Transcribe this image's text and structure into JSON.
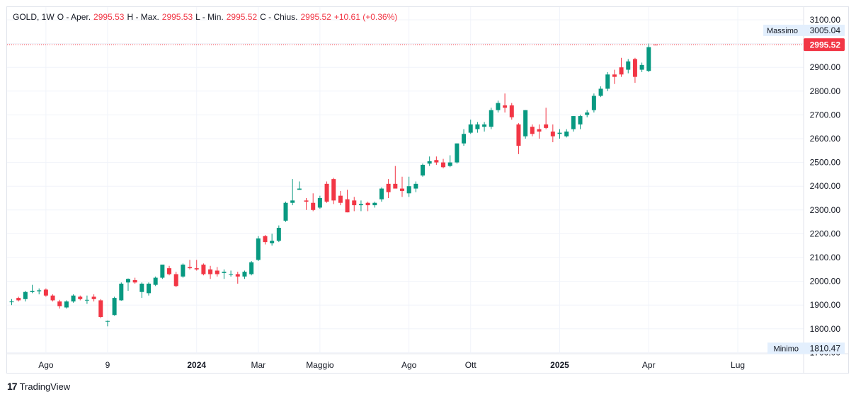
{
  "legend": {
    "symbol": "GOLD, 1W",
    "open_key": "O - Aper.",
    "open_val": "2995.53",
    "high_key": "H - Max.",
    "high_val": "2995.53",
    "low_key": "L - Min.",
    "low_val": "2995.52",
    "close_key": "C - Chius.",
    "close_val": "2995.52",
    "change": "+10.61 (+0.36%)"
  },
  "watermark": {
    "logo": "17",
    "text": "TradingView"
  },
  "colors": {
    "up": "#089981",
    "down": "#f23645",
    "grid": "#f0f3fa",
    "axis_text": "#131722",
    "max_label_bg": "#e3effd"
  },
  "chart_data": {
    "type": "candlestick",
    "ylim": [
      1680,
      3130
    ],
    "y_ticks": [
      "3100.00",
      "3000.00",
      "2900.00",
      "2800.00",
      "2700.00",
      "2600.00",
      "2500.00",
      "2400.00",
      "2300.00",
      "2200.00",
      "2100.00",
      "2000.00",
      "1900.00",
      "1800.00",
      "1700.00"
    ],
    "y_tick_values": [
      3100,
      3000,
      2900,
      2800,
      2700,
      2600,
      2500,
      2400,
      2300,
      2200,
      2100,
      2000,
      1900,
      1800,
      1700
    ],
    "x_labels": [
      {
        "label": "Ago",
        "index": 5
      },
      {
        "label": "9",
        "index": 14
      },
      {
        "label": "2024",
        "index": 27
      },
      {
        "label": "Mar",
        "index": 36
      },
      {
        "label": "Maggio",
        "index": 45
      },
      {
        "label": "Ago",
        "index": 58
      },
      {
        "label": "Ott",
        "index": 67
      },
      {
        "label": "2025",
        "index": 80
      },
      {
        "label": "Apr",
        "index": 93
      },
      {
        "label": "Lug",
        "index": 106
      }
    ],
    "max_label": {
      "text": "Massimo",
      "value": "3005.04",
      "price": 3005.04
    },
    "min_label": {
      "text": "Minimo",
      "value": "1810.47",
      "price": 1810.47
    },
    "last_price": {
      "value": "2995.52",
      "price": 2995.52
    },
    "candles": [
      {
        "o": 1912,
        "h": 1925,
        "l": 1900,
        "c": 1915
      },
      {
        "o": 1930,
        "h": 1935,
        "l": 1915,
        "c": 1920
      },
      {
        "o": 1925,
        "h": 1960,
        "l": 1915,
        "c": 1955
      },
      {
        "o": 1955,
        "h": 1985,
        "l": 1950,
        "c": 1960
      },
      {
        "o": 1958,
        "h": 1970,
        "l": 1945,
        "c": 1962
      },
      {
        "o": 1965,
        "h": 1970,
        "l": 1935,
        "c": 1940
      },
      {
        "o": 1940,
        "h": 1945,
        "l": 1915,
        "c": 1920
      },
      {
        "o": 1915,
        "h": 1922,
        "l": 1885,
        "c": 1895
      },
      {
        "o": 1890,
        "h": 1920,
        "l": 1885,
        "c": 1915
      },
      {
        "o": 1915,
        "h": 1945,
        "l": 1910,
        "c": 1940
      },
      {
        "o": 1935,
        "h": 1940,
        "l": 1920,
        "c": 1925
      },
      {
        "o": 1920,
        "h": 1940,
        "l": 1905,
        "c": 1922
      },
      {
        "o": 1935,
        "h": 1945,
        "l": 1915,
        "c": 1925
      },
      {
        "o": 1920,
        "h": 1925,
        "l": 1845,
        "c": 1850
      },
      {
        "o": 1830,
        "h": 1835,
        "l": 1810.47,
        "c": 1833
      },
      {
        "o": 1858,
        "h": 1935,
        "l": 1855,
        "c": 1930
      },
      {
        "o": 1920,
        "h": 1995,
        "l": 1918,
        "c": 1990
      },
      {
        "o": 1995,
        "h": 2012,
        "l": 1960,
        "c": 2010
      },
      {
        "o": 2005,
        "h": 2015,
        "l": 1990,
        "c": 1995
      },
      {
        "o": 1955,
        "h": 1995,
        "l": 1930,
        "c": 1990
      },
      {
        "o": 1950,
        "h": 1995,
        "l": 1940,
        "c": 1990
      },
      {
        "o": 1985,
        "h": 2020,
        "l": 1980,
        "c": 2015
      },
      {
        "o": 2015,
        "h": 2065,
        "l": 2010,
        "c": 2070
      },
      {
        "o": 2055,
        "h": 2065,
        "l": 2025,
        "c": 2030
      },
      {
        "o": 2030,
        "h": 2040,
        "l": 1975,
        "c": 1980
      },
      {
        "o": 2020,
        "h": 2075,
        "l": 2015,
        "c": 2070
      },
      {
        "o": 2060,
        "h": 2090,
        "l": 2050,
        "c": 2055
      },
      {
        "o": 2055,
        "h": 2090,
        "l": 2045,
        "c": 2050
      },
      {
        "o": 2070,
        "h": 2075,
        "l": 2025,
        "c": 2030
      },
      {
        "o": 2050,
        "h": 2065,
        "l": 2010,
        "c": 2030
      },
      {
        "o": 2045,
        "h": 2060,
        "l": 2020,
        "c": 2030
      },
      {
        "o": 2035,
        "h": 2050,
        "l": 2010,
        "c": 2040
      },
      {
        "o": 2030,
        "h": 2045,
        "l": 2020,
        "c": 2030
      },
      {
        "o": 2030,
        "h": 2040,
        "l": 1990,
        "c": 2020
      },
      {
        "o": 2020,
        "h": 2045,
        "l": 2010,
        "c": 2040
      },
      {
        "o": 2030,
        "h": 2085,
        "l": 2025,
        "c": 2080
      },
      {
        "o": 2090,
        "h": 2190,
        "l": 2085,
        "c": 2180
      },
      {
        "o": 2190,
        "h": 2195,
        "l": 2155,
        "c": 2165
      },
      {
        "o": 2160,
        "h": 2200,
        "l": 2150,
        "c": 2170
      },
      {
        "o": 2170,
        "h": 2235,
        "l": 2165,
        "c": 2225
      },
      {
        "o": 2255,
        "h": 2335,
        "l": 2250,
        "c": 2330
      },
      {
        "o": 2330,
        "h": 2430,
        "l": 2320,
        "c": 2340
      },
      {
        "o": 2385,
        "h": 2420,
        "l": 2385,
        "c": 2390
      },
      {
        "o": 2340,
        "h": 2350,
        "l": 2300,
        "c": 2335
      },
      {
        "o": 2330,
        "h": 2370,
        "l": 2295,
        "c": 2300
      },
      {
        "o": 2310,
        "h": 2360,
        "l": 2305,
        "c": 2350
      },
      {
        "o": 2410,
        "h": 2420,
        "l": 2330,
        "c": 2335
      },
      {
        "o": 2430,
        "h": 2435,
        "l": 2325,
        "c": 2340
      },
      {
        "o": 2360,
        "h": 2380,
        "l": 2320,
        "c": 2330
      },
      {
        "o": 2345,
        "h": 2385,
        "l": 2290,
        "c": 2290
      },
      {
        "o": 2340,
        "h": 2355,
        "l": 2295,
        "c": 2320
      },
      {
        "o": 2320,
        "h": 2340,
        "l": 2295,
        "c": 2325
      },
      {
        "o": 2330,
        "h": 2335,
        "l": 2295,
        "c": 2320
      },
      {
        "o": 2320,
        "h": 2335,
        "l": 2310,
        "c": 2330
      },
      {
        "o": 2345,
        "h": 2395,
        "l": 2335,
        "c": 2390
      },
      {
        "o": 2410,
        "h": 2430,
        "l": 2350,
        "c": 2375
      },
      {
        "o": 2410,
        "h": 2485,
        "l": 2395,
        "c": 2390
      },
      {
        "o": 2390,
        "h": 2440,
        "l": 2355,
        "c": 2380
      },
      {
        "o": 2370,
        "h": 2440,
        "l": 2355,
        "c": 2400
      },
      {
        "o": 2390,
        "h": 2420,
        "l": 2375,
        "c": 2410
      },
      {
        "o": 2445,
        "h": 2495,
        "l": 2440,
        "c": 2490
      },
      {
        "o": 2495,
        "h": 2525,
        "l": 2485,
        "c": 2505
      },
      {
        "o": 2510,
        "h": 2525,
        "l": 2490,
        "c": 2500
      },
      {
        "o": 2500,
        "h": 2515,
        "l": 2475,
        "c": 2480
      },
      {
        "o": 2485,
        "h": 2530,
        "l": 2480,
        "c": 2500
      },
      {
        "o": 2500,
        "h": 2580,
        "l": 2495,
        "c": 2580
      },
      {
        "o": 2580,
        "h": 2640,
        "l": 2570,
        "c": 2620
      },
      {
        "o": 2625,
        "h": 2680,
        "l": 2620,
        "c": 2660
      },
      {
        "o": 2640,
        "h": 2670,
        "l": 2625,
        "c": 2660
      },
      {
        "o": 2650,
        "h": 2670,
        "l": 2630,
        "c": 2660
      },
      {
        "o": 2650,
        "h": 2730,
        "l": 2640,
        "c": 2720
      },
      {
        "o": 2720,
        "h": 2760,
        "l": 2710,
        "c": 2750
      },
      {
        "o": 2740,
        "h": 2790,
        "l": 2710,
        "c": 2730
      },
      {
        "o": 2740,
        "h": 2750,
        "l": 2680,
        "c": 2690
      },
      {
        "o": 2660,
        "h": 2665,
        "l": 2535,
        "c": 2570
      },
      {
        "o": 2610,
        "h": 2720,
        "l": 2600,
        "c": 2720
      },
      {
        "o": 2650,
        "h": 2660,
        "l": 2610,
        "c": 2620
      },
      {
        "o": 2640,
        "h": 2660,
        "l": 2600,
        "c": 2630
      },
      {
        "o": 2660,
        "h": 2730,
        "l": 2640,
        "c": 2645
      },
      {
        "o": 2630,
        "h": 2660,
        "l": 2585,
        "c": 2610
      },
      {
        "o": 2620,
        "h": 2640,
        "l": 2600,
        "c": 2625
      },
      {
        "o": 2610,
        "h": 2640,
        "l": 2605,
        "c": 2630
      },
      {
        "o": 2640,
        "h": 2695,
        "l": 2630,
        "c": 2695
      },
      {
        "o": 2660,
        "h": 2700,
        "l": 2640,
        "c": 2695
      },
      {
        "o": 2700,
        "h": 2720,
        "l": 2690,
        "c": 2710
      },
      {
        "o": 2720,
        "h": 2790,
        "l": 2710,
        "c": 2780
      },
      {
        "o": 2780,
        "h": 2820,
        "l": 2775,
        "c": 2810
      },
      {
        "o": 2810,
        "h": 2880,
        "l": 2800,
        "c": 2870
      },
      {
        "o": 2870,
        "h": 2890,
        "l": 2830,
        "c": 2860
      },
      {
        "o": 2900,
        "h": 2940,
        "l": 2860,
        "c": 2870
      },
      {
        "o": 2890,
        "h": 2935,
        "l": 2875,
        "c": 2925
      },
      {
        "o": 2935,
        "h": 2940,
        "l": 2835,
        "c": 2860
      },
      {
        "o": 2890,
        "h": 2920,
        "l": 2880,
        "c": 2910
      },
      {
        "o": 2885,
        "h": 3000,
        "l": 2880,
        "c": 2985
      },
      {
        "o": 2995.53,
        "h": 2995.53,
        "l": 2995.52,
        "c": 2995.52
      }
    ]
  }
}
